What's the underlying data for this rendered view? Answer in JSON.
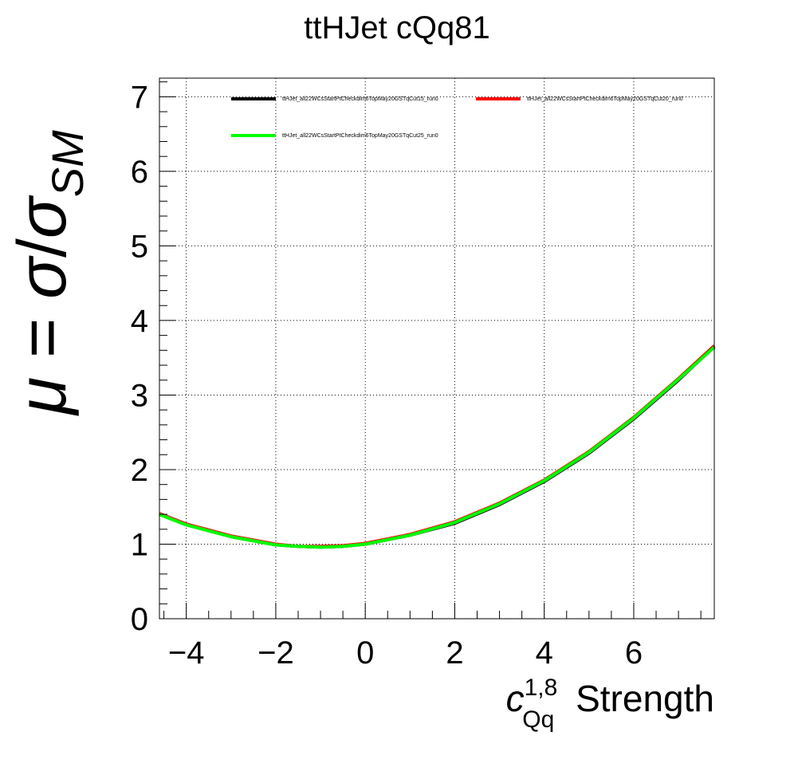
{
  "chart_data": {
    "type": "line",
    "title": "ttHJet cQq81",
    "xlabel": {
      "symbol": "c",
      "superscript": "1,8",
      "subscript": "Qq",
      "text": "Strength"
    },
    "ylabel": {
      "mu": "μ",
      "equals": " = ",
      "sigma": "σ",
      "slash": "/",
      "sigma_sm": "σ",
      "sm": "SM"
    },
    "xlim": [
      -4.6,
      7.8
    ],
    "ylim": [
      0,
      7.25
    ],
    "x_ticks": [
      {
        "value": -4,
        "label": "−4"
      },
      {
        "value": -2,
        "label": "−2"
      },
      {
        "value": 0,
        "label": "0"
      },
      {
        "value": 2,
        "label": "2"
      },
      {
        "value": 4,
        "label": "4"
      },
      {
        "value": 6,
        "label": "6"
      }
    ],
    "y_ticks": [
      {
        "value": 0,
        "label": "0"
      },
      {
        "value": 1,
        "label": "1"
      },
      {
        "value": 2,
        "label": "2"
      },
      {
        "value": 3,
        "label": "3"
      },
      {
        "value": 4,
        "label": "4"
      },
      {
        "value": 5,
        "label": "5"
      },
      {
        "value": 6,
        "label": "6"
      },
      {
        "value": 7,
        "label": "7"
      }
    ],
    "grid": true,
    "legend_position": "top",
    "x": [
      -4.6,
      -4,
      -3,
      -2,
      -1.5,
      -1,
      -0.5,
      0,
      1,
      2,
      3,
      4,
      5,
      6,
      7,
      7.8
    ],
    "series": [
      {
        "name": "ttHJet_all22WCsStartPtCheckdim6TopMay20GSTqCut15_run0",
        "color": "#000000",
        "values": [
          1.4,
          1.26,
          1.1,
          0.99,
          0.97,
          0.96,
          0.97,
          1.0,
          1.12,
          1.28,
          1.53,
          1.84,
          2.22,
          2.68,
          3.2,
          3.65
        ]
      },
      {
        "name": "ttHJet_all22WCsStartPtCheckdim6TopMay20GSTqCut20_run0",
        "color": "#ff0000",
        "values": [
          1.41,
          1.27,
          1.11,
          1.0,
          0.97,
          0.97,
          0.98,
          1.01,
          1.13,
          1.3,
          1.55,
          1.86,
          2.24,
          2.7,
          3.22,
          3.66
        ]
      },
      {
        "name": "ttHJet_all22WCsStartPtCheckdim6TopMay20GSTqCut25_run0",
        "color": "#00ff00",
        "values": [
          1.4,
          1.26,
          1.1,
          0.99,
          0.97,
          0.96,
          0.97,
          1.0,
          1.12,
          1.29,
          1.54,
          1.85,
          2.23,
          2.69,
          3.21,
          3.64
        ]
      }
    ]
  }
}
